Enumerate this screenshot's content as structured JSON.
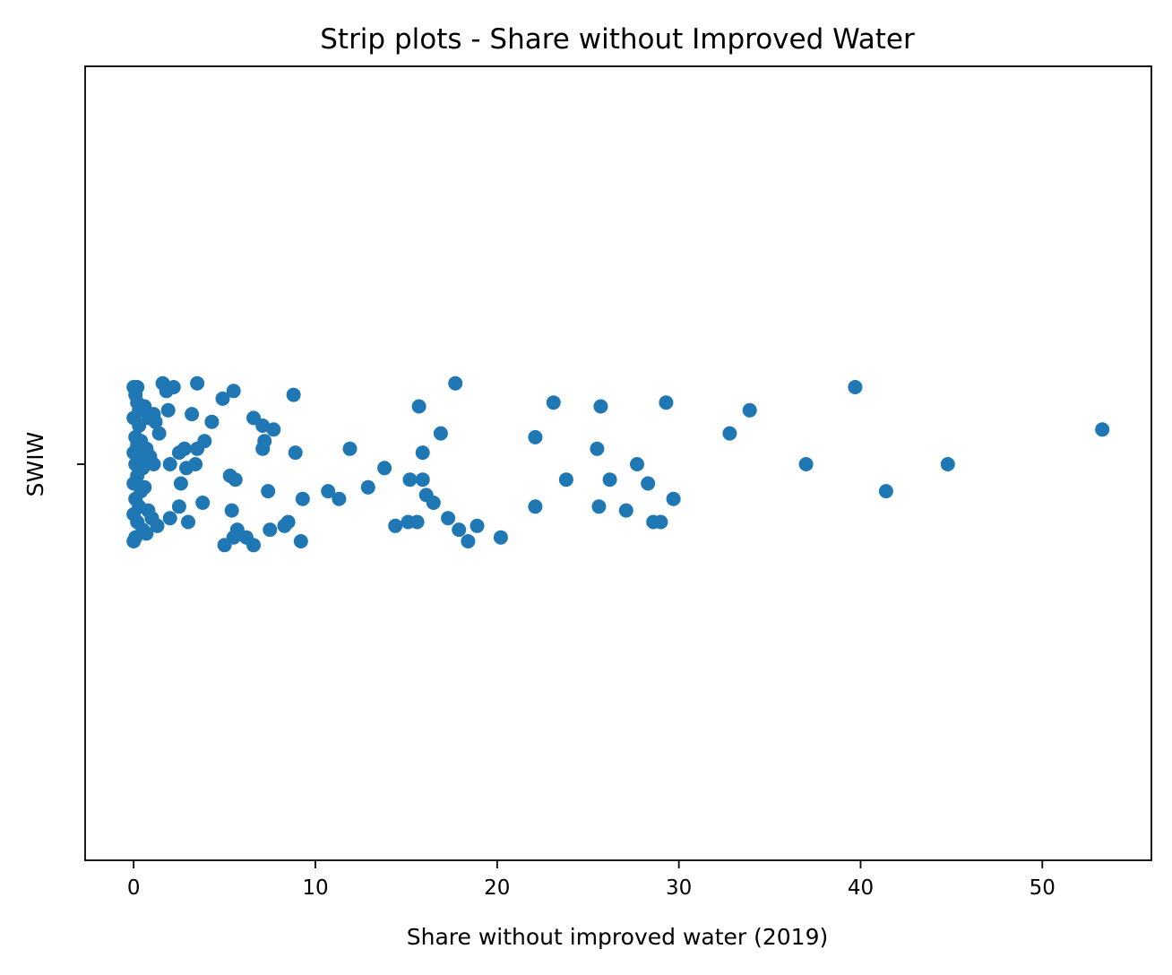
{
  "chart_data": {
    "type": "scatter",
    "subtype": "strip",
    "title": "Strip plots - Share without Improved Water",
    "xlabel": "Share without improved water (2019)",
    "ylabel": "SWIW",
    "categories": [
      "SWIW"
    ],
    "xlim": [
      -2.67,
      56.0
    ],
    "xticks": [
      0,
      10,
      20,
      30,
      40,
      50
    ],
    "grid": false,
    "legend": "none",
    "color": "#1f77b4",
    "points": [
      {
        "x": 0.0,
        "jitter": 0.2
      },
      {
        "x": 0.1,
        "jitter": 0.18
      },
      {
        "x": 0.2,
        "jitter": 0.16
      },
      {
        "x": 0.0,
        "jitter": 0.12
      },
      {
        "x": 0.3,
        "jitter": 0.1
      },
      {
        "x": 0.1,
        "jitter": 0.07
      },
      {
        "x": 0.4,
        "jitter": 0.06
      },
      {
        "x": 0.2,
        "jitter": 0.05
      },
      {
        "x": 0.0,
        "jitter": 0.03
      },
      {
        "x": 0.3,
        "jitter": 0.01
      },
      {
        "x": 0.1,
        "jitter": 0.0
      },
      {
        "x": 0.5,
        "jitter": -0.01
      },
      {
        "x": 0.2,
        "jitter": -0.03
      },
      {
        "x": 0.0,
        "jitter": -0.05
      },
      {
        "x": 0.4,
        "jitter": -0.07
      },
      {
        "x": 0.1,
        "jitter": -0.09
      },
      {
        "x": 0.3,
        "jitter": -0.11
      },
      {
        "x": 0.0,
        "jitter": -0.13
      },
      {
        "x": 0.2,
        "jitter": -0.15
      },
      {
        "x": 0.5,
        "jitter": -0.17
      },
      {
        "x": 0.1,
        "jitter": -0.19
      },
      {
        "x": 0.0,
        "jitter": -0.2
      },
      {
        "x": 0.6,
        "jitter": 0.15
      },
      {
        "x": 0.8,
        "jitter": 0.12
      },
      {
        "x": 0.7,
        "jitter": 0.04
      },
      {
        "x": 0.9,
        "jitter": 0.02
      },
      {
        "x": 0.6,
        "jitter": -0.06
      },
      {
        "x": 0.8,
        "jitter": -0.12
      },
      {
        "x": 1.0,
        "jitter": -0.14
      },
      {
        "x": 0.7,
        "jitter": -0.18
      },
      {
        "x": 0.2,
        "jitter": 0.2
      },
      {
        "x": 0.3,
        "jitter": 0.14
      },
      {
        "x": 1.1,
        "jitter": 0.13
      },
      {
        "x": 1.2,
        "jitter": 0.11
      },
      {
        "x": 1.4,
        "jitter": 0.08
      },
      {
        "x": 1.1,
        "jitter": 0.0
      },
      {
        "x": 1.0,
        "jitter": -0.14
      },
      {
        "x": 1.3,
        "jitter": -0.16
      },
      {
        "x": 1.6,
        "jitter": 0.21
      },
      {
        "x": 2.2,
        "jitter": 0.2
      },
      {
        "x": 3.5,
        "jitter": 0.21
      },
      {
        "x": 1.8,
        "jitter": 0.19
      },
      {
        "x": 1.9,
        "jitter": 0.14
      },
      {
        "x": 3.2,
        "jitter": 0.13
      },
      {
        "x": 2.0,
        "jitter": 0.0
      },
      {
        "x": 2.5,
        "jitter": 0.03
      },
      {
        "x": 2.8,
        "jitter": 0.04
      },
      {
        "x": 3.5,
        "jitter": 0.04
      },
      {
        "x": 2.6,
        "jitter": -0.05
      },
      {
        "x": 2.9,
        "jitter": -0.01
      },
      {
        "x": 3.4,
        "jitter": 0.0
      },
      {
        "x": 2.5,
        "jitter": -0.11
      },
      {
        "x": 3.8,
        "jitter": -0.1
      },
      {
        "x": 2.0,
        "jitter": -0.14
      },
      {
        "x": 3.0,
        "jitter": -0.15
      },
      {
        "x": 3.9,
        "jitter": 0.06
      },
      {
        "x": 4.3,
        "jitter": 0.11
      },
      {
        "x": 4.9,
        "jitter": 0.17
      },
      {
        "x": 5.5,
        "jitter": 0.19
      },
      {
        "x": 5.3,
        "jitter": -0.03
      },
      {
        "x": 5.6,
        "jitter": -0.04
      },
      {
        "x": 5.4,
        "jitter": -0.12
      },
      {
        "x": 6.6,
        "jitter": 0.12
      },
      {
        "x": 7.1,
        "jitter": 0.1
      },
      {
        "x": 7.7,
        "jitter": 0.09
      },
      {
        "x": 7.2,
        "jitter": 0.06
      },
      {
        "x": 7.1,
        "jitter": 0.04
      },
      {
        "x": 8.8,
        "jitter": 0.18
      },
      {
        "x": 8.9,
        "jitter": 0.03
      },
      {
        "x": 7.4,
        "jitter": -0.07
      },
      {
        "x": 9.3,
        "jitter": -0.09
      },
      {
        "x": 8.5,
        "jitter": -0.15
      },
      {
        "x": 8.3,
        "jitter": -0.16
      },
      {
        "x": 7.5,
        "jitter": -0.17
      },
      {
        "x": 5.7,
        "jitter": -0.17
      },
      {
        "x": 6.2,
        "jitter": -0.19
      },
      {
        "x": 5.5,
        "jitter": -0.19
      },
      {
        "x": 5.0,
        "jitter": -0.21
      },
      {
        "x": 6.6,
        "jitter": -0.21
      },
      {
        "x": 9.2,
        "jitter": -0.2
      },
      {
        "x": 11.9,
        "jitter": 0.04
      },
      {
        "x": 10.7,
        "jitter": -0.07
      },
      {
        "x": 11.3,
        "jitter": -0.09
      },
      {
        "x": 12.9,
        "jitter": -0.06
      },
      {
        "x": 13.8,
        "jitter": -0.01
      },
      {
        "x": 15.7,
        "jitter": 0.15
      },
      {
        "x": 17.7,
        "jitter": 0.21
      },
      {
        "x": 16.9,
        "jitter": 0.08
      },
      {
        "x": 15.9,
        "jitter": 0.03
      },
      {
        "x": 15.2,
        "jitter": -0.04
      },
      {
        "x": 15.9,
        "jitter": -0.04
      },
      {
        "x": 16.1,
        "jitter": -0.08
      },
      {
        "x": 16.5,
        "jitter": -0.1
      },
      {
        "x": 15.1,
        "jitter": -0.15
      },
      {
        "x": 15.6,
        "jitter": -0.15
      },
      {
        "x": 14.4,
        "jitter": -0.16
      },
      {
        "x": 17.3,
        "jitter": -0.14
      },
      {
        "x": 17.9,
        "jitter": -0.17
      },
      {
        "x": 18.9,
        "jitter": -0.16
      },
      {
        "x": 18.4,
        "jitter": -0.2
      },
      {
        "x": 20.2,
        "jitter": -0.19
      },
      {
        "x": 22.1,
        "jitter": 0.07
      },
      {
        "x": 22.1,
        "jitter": -0.11
      },
      {
        "x": 23.1,
        "jitter": 0.16
      },
      {
        "x": 23.8,
        "jitter": -0.04
      },
      {
        "x": 25.7,
        "jitter": 0.15
      },
      {
        "x": 25.5,
        "jitter": 0.04
      },
      {
        "x": 26.2,
        "jitter": -0.04
      },
      {
        "x": 25.6,
        "jitter": -0.11
      },
      {
        "x": 27.1,
        "jitter": -0.12
      },
      {
        "x": 27.7,
        "jitter": 0.0
      },
      {
        "x": 29.3,
        "jitter": 0.16
      },
      {
        "x": 28.3,
        "jitter": -0.05
      },
      {
        "x": 29.7,
        "jitter": -0.09
      },
      {
        "x": 28.6,
        "jitter": -0.15
      },
      {
        "x": 29.0,
        "jitter": -0.15
      },
      {
        "x": 32.8,
        "jitter": 0.08
      },
      {
        "x": 33.9,
        "jitter": 0.14
      },
      {
        "x": 37.0,
        "jitter": 0.0
      },
      {
        "x": 39.7,
        "jitter": 0.2
      },
      {
        "x": 41.4,
        "jitter": -0.07
      },
      {
        "x": 44.8,
        "jitter": 0.0
      },
      {
        "x": 53.3,
        "jitter": 0.09
      }
    ]
  }
}
